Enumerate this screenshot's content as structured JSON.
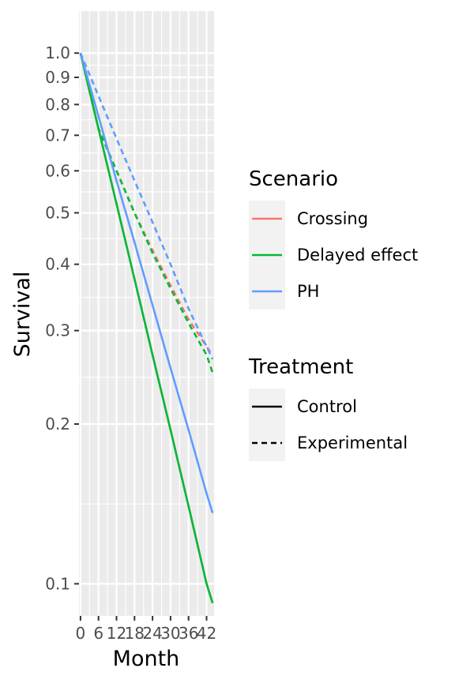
{
  "chart_data": {
    "type": "line",
    "title": "",
    "xlabel": "Month",
    "ylabel": "Survival",
    "y_scale": "log",
    "xlim": [
      -0.5,
      44.5
    ],
    "ylim": [
      0.087,
      1.2
    ],
    "x_ticks": [
      0,
      6,
      12,
      18,
      24,
      30,
      36,
      42
    ],
    "y_ticks": [
      0.1,
      0.2,
      0.3,
      0.4,
      0.5,
      0.6,
      0.7,
      0.8,
      0.9,
      1.0
    ],
    "y_tick_labels": [
      "0.1",
      "0.2",
      "0.3",
      "0.4",
      "0.5",
      "0.6",
      "0.7",
      "0.8",
      "0.9",
      "1.0"
    ],
    "grid": true,
    "background": "#EBEBEB",
    "legend_position": "right",
    "legend": {
      "scenario_title": "Scenario",
      "scenario_items": [
        {
          "label": "Crossing",
          "color": "#F8766D"
        },
        {
          "label": "Delayed effect",
          "color": "#00BA38"
        },
        {
          "label": "PH",
          "color": "#619CFF"
        }
      ],
      "treatment_title": "Treatment",
      "treatment_items": [
        {
          "label": "Control",
          "linetype": "solid"
        },
        {
          "label": "Experimental",
          "linetype": "dashed"
        }
      ]
    },
    "series": [
      {
        "scenario": "Crossing",
        "treatment": "Control",
        "color": "#F8766D",
        "linetype": "solid",
        "x": [
          0,
          6,
          12,
          18,
          24,
          30,
          36,
          42,
          44
        ],
        "y": [
          1.0,
          0.72,
          0.52,
          0.375,
          0.27,
          0.195,
          0.14,
          0.1,
          0.092
        ]
      },
      {
        "scenario": "Crossing",
        "treatment": "Experimental",
        "color": "#F8766D",
        "linetype": "dashed",
        "x": [
          0,
          6,
          12,
          18,
          24,
          30,
          36,
          42,
          44
        ],
        "y": [
          1.0,
          0.72,
          0.6,
          0.5,
          0.425,
          0.365,
          0.315,
          0.28,
          0.27
        ]
      },
      {
        "scenario": "Delayed effect",
        "treatment": "Control",
        "color": "#00BA38",
        "linetype": "solid",
        "x": [
          0,
          6,
          12,
          18,
          24,
          30,
          36,
          42,
          44
        ],
        "y": [
          1.0,
          0.72,
          0.52,
          0.375,
          0.27,
          0.195,
          0.14,
          0.1,
          0.092
        ]
      },
      {
        "scenario": "Delayed effect",
        "treatment": "Experimental",
        "color": "#00BA38",
        "linetype": "dashed",
        "x": [
          0,
          6,
          12,
          18,
          24,
          30,
          36,
          42,
          44
        ],
        "y": [
          1.0,
          0.72,
          0.6,
          0.5,
          0.42,
          0.36,
          0.31,
          0.27,
          0.25
        ]
      },
      {
        "scenario": "PH",
        "treatment": "Control",
        "color": "#619CFF",
        "linetype": "solid",
        "x": [
          0,
          6,
          12,
          18,
          24,
          30,
          36,
          42,
          44
        ],
        "y": [
          1.0,
          0.76,
          0.575,
          0.44,
          0.335,
          0.255,
          0.195,
          0.148,
          0.136
        ]
      },
      {
        "scenario": "PH",
        "treatment": "Experimental",
        "color": "#619CFF",
        "linetype": "dashed",
        "x": [
          0,
          6,
          12,
          18,
          24,
          30,
          36,
          42,
          44
        ],
        "y": [
          1.0,
          0.83,
          0.69,
          0.575,
          0.48,
          0.4,
          0.33,
          0.28,
          0.265
        ]
      }
    ]
  }
}
